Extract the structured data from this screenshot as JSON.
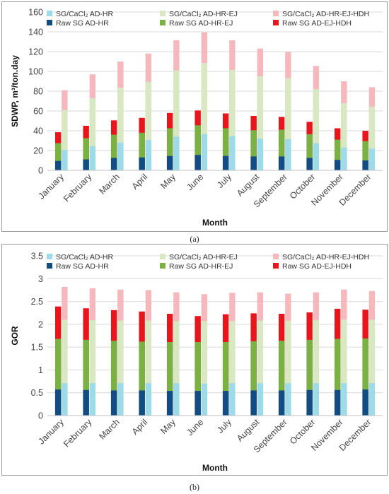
{
  "figure": {
    "caption_a": "(a)",
    "caption_b": "(b)"
  },
  "colors": {
    "SG/CaCl₂ AD-HR": "#9edbe9",
    "SG/CaCl₂ AD-HR-EJ": "#d7e8c2",
    "SG/CaCl₂ AD-HR-EJ-HDH": "#f4b8bd",
    "Raw SG AD-HR": "#124c84",
    "Raw SG AD-HR-EJ": "#79b143",
    "Raw SG AD-EJ-HDH": "#e8151d",
    "grid": "#d9d9d9"
  },
  "chart_data": [
    {
      "type": "bar",
      "title": "",
      "xlabel": "Month",
      "ylabel": "SDWP, m³/ton.day",
      "ylim": [
        0,
        160
      ],
      "yticks": [
        "0",
        "20",
        "40",
        "60",
        "80",
        "100",
        "120",
        "140",
        "160"
      ],
      "grid": true,
      "legend_position": "top",
      "categories": [
        "January",
        "February",
        "March",
        "April",
        "May",
        "June",
        "July",
        "August",
        "September",
        "October",
        "November",
        "December"
      ],
      "series": [
        {
          "name": "SG/CaCl₂ AD-HR",
          "group": "SG/CaCl₂",
          "values": [
            20.5,
            24.5,
            28,
            30.5,
            34,
            36.5,
            34.5,
            32,
            31.5,
            27.5,
            23,
            22
          ]
        },
        {
          "name": "SG/CaCl₂ AD-HR-EJ",
          "group": "SG/CaCl₂",
          "values": [
            61,
            73,
            83.5,
            89.5,
            101,
            108.5,
            101.5,
            95,
            93,
            82,
            68,
            64.5
          ]
        },
        {
          "name": "SG/CaCl₂ AD-HR-EJ-HDH",
          "group": "SG/CaCl₂",
          "values": [
            81,
            97,
            110,
            118,
            131.5,
            139.5,
            131.5,
            123,
            119.5,
            105.5,
            90,
            84
          ]
        },
        {
          "name": "Raw SG AD-HR",
          "group": "Raw",
          "values": [
            9.5,
            11,
            12.5,
            13,
            14.5,
            15.5,
            14.5,
            14,
            14,
            12.5,
            10.5,
            10
          ]
        },
        {
          "name": "Raw SG AD-HR-EJ",
          "group": "Raw",
          "values": [
            27.5,
            32.5,
            36,
            38,
            42.5,
            45.5,
            42.5,
            40.5,
            41,
            36.5,
            31,
            29.5
          ]
        },
        {
          "name": "Raw SG AD-EJ-HDH",
          "group": "Raw",
          "values": [
            38.5,
            45,
            50.5,
            53,
            58,
            60.5,
            57.5,
            55,
            54,
            49,
            42.5,
            40
          ]
        }
      ]
    },
    {
      "type": "bar",
      "title": "",
      "xlabel": "Month",
      "ylabel": "GOR",
      "ylim": [
        0,
        3.5
      ],
      "yticks": [
        "0",
        "0.5",
        "1",
        "1.5",
        "2",
        "2.5",
        "3",
        "3.5"
      ],
      "grid": true,
      "legend_position": "top",
      "categories": [
        "January",
        "February",
        "March",
        "April",
        "May",
        "June",
        "July",
        "August",
        "September",
        "October",
        "November",
        "December"
      ],
      "series": [
        {
          "name": "SG/CaCl₂ AD-HR",
          "group": "SG/CaCl₂",
          "values": [
            0.71,
            0.71,
            0.71,
            0.71,
            0.71,
            0.7,
            0.71,
            0.71,
            0.71,
            0.71,
            0.71,
            0.71
          ]
        },
        {
          "name": "SG/CaCl₂ AD-HR-EJ",
          "group": "SG/CaCl₂",
          "values": [
            2.1,
            2.09,
            2.08,
            2.08,
            2.07,
            2.07,
            2.07,
            2.08,
            2.08,
            2.09,
            2.1,
            2.1
          ]
        },
        {
          "name": "SG/CaCl₂ AD-HR-EJ-HDH",
          "group": "SG/CaCl₂",
          "values": [
            2.82,
            2.79,
            2.76,
            2.75,
            2.7,
            2.66,
            2.69,
            2.7,
            2.67,
            2.7,
            2.76,
            2.73
          ]
        },
        {
          "name": "Raw SG AD-HR",
          "group": "Raw",
          "values": [
            0.57,
            0.56,
            0.55,
            0.55,
            0.54,
            0.54,
            0.54,
            0.55,
            0.55,
            0.56,
            0.56,
            0.57
          ]
        },
        {
          "name": "Raw SG AD-HR-EJ",
          "group": "Raw",
          "values": [
            1.68,
            1.66,
            1.64,
            1.62,
            1.61,
            1.61,
            1.61,
            1.63,
            1.64,
            1.66,
            1.68,
            1.69
          ]
        },
        {
          "name": "Raw SG AD-EJ-HDH",
          "group": "Raw",
          "values": [
            2.39,
            2.35,
            2.31,
            2.28,
            2.23,
            2.18,
            2.22,
            2.24,
            2.23,
            2.26,
            2.34,
            2.32
          ]
        }
      ]
    }
  ]
}
